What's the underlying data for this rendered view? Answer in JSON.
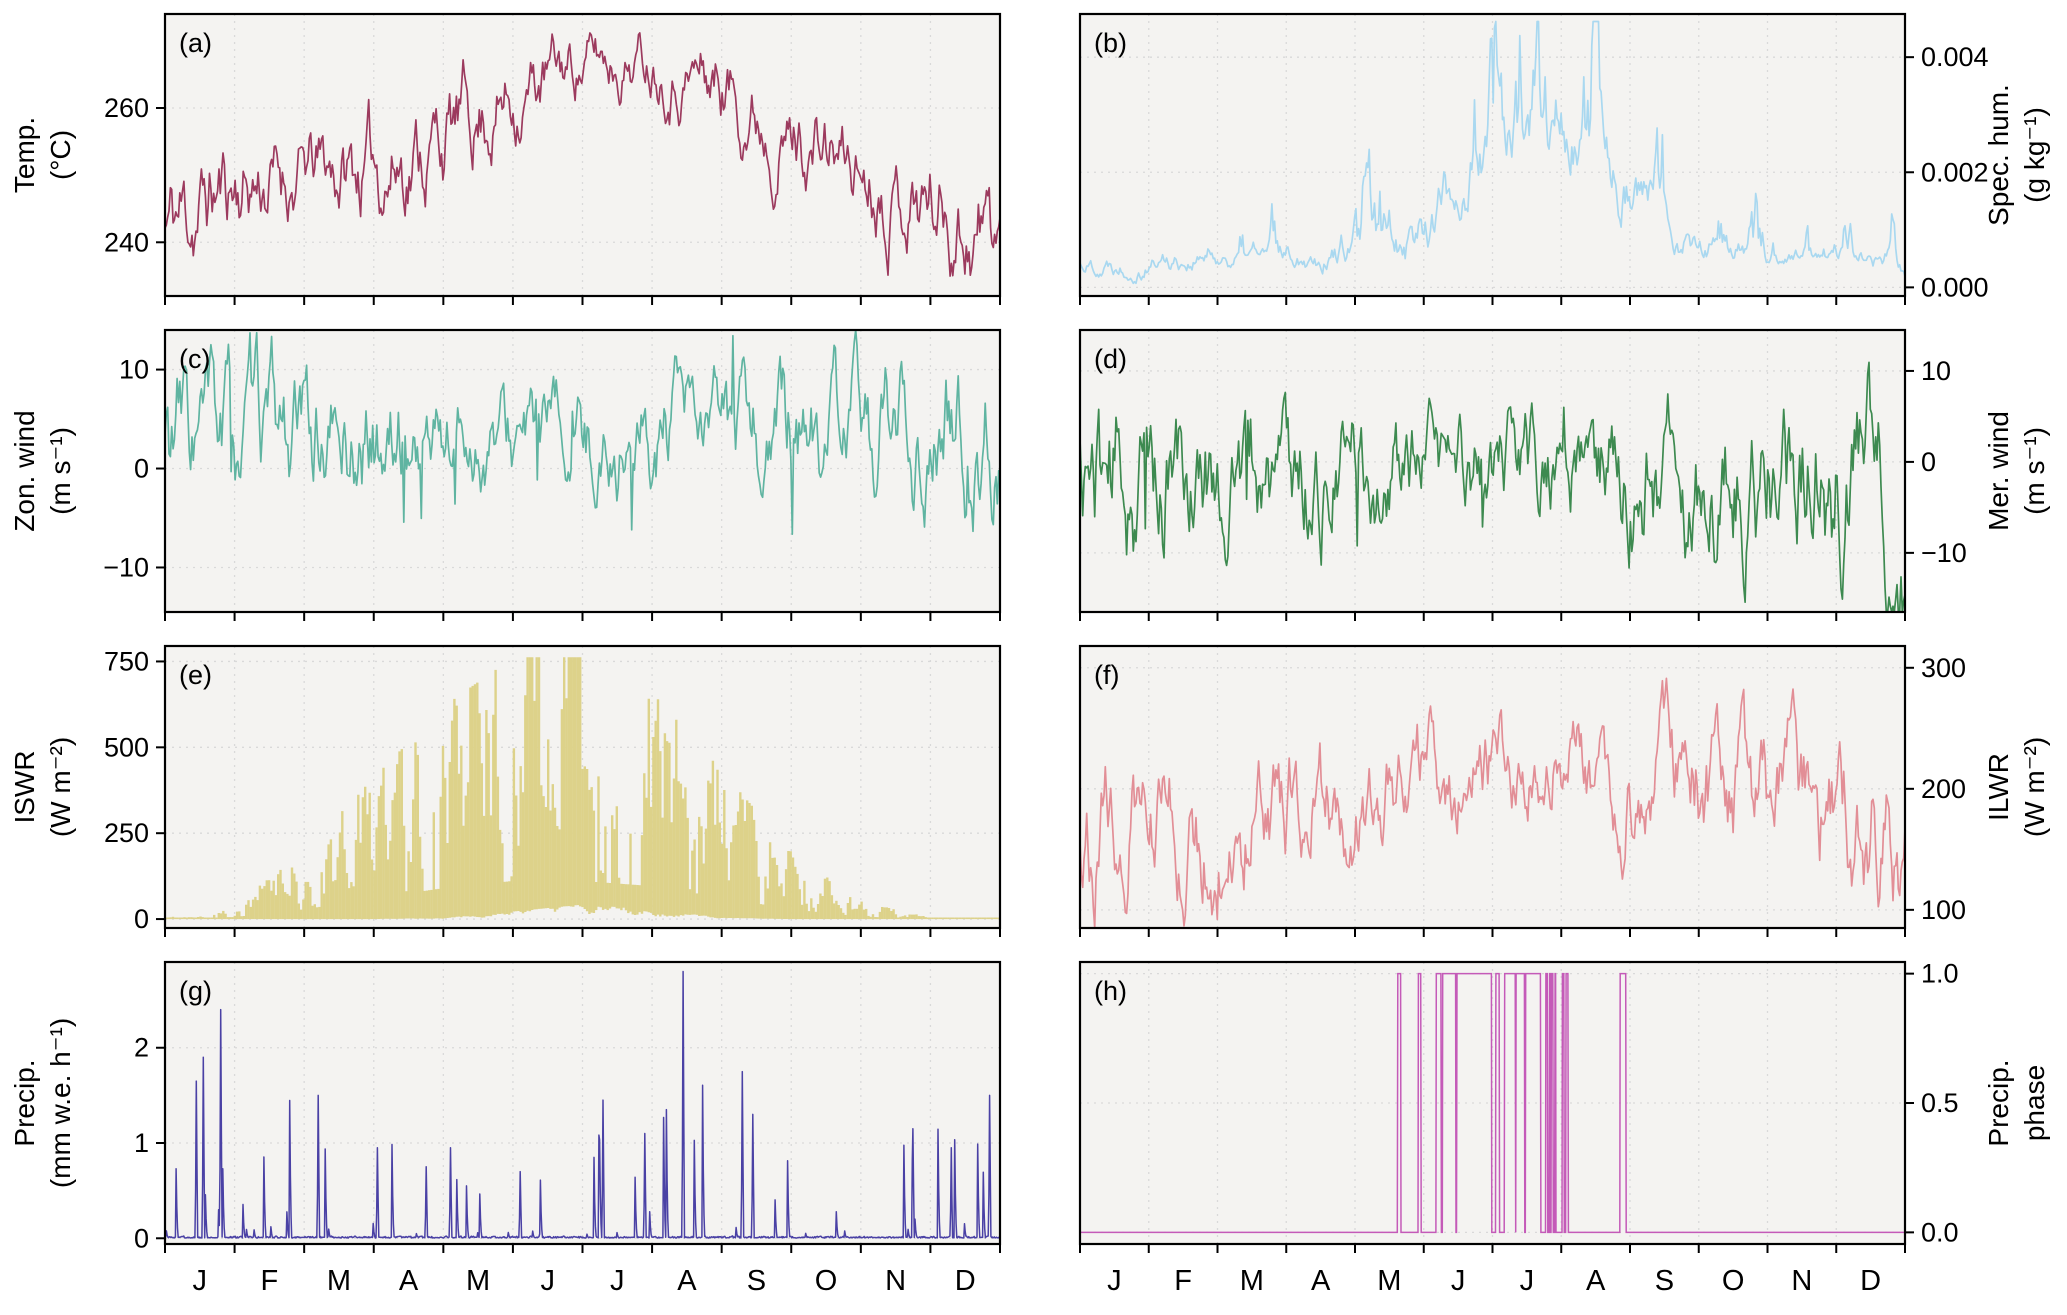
{
  "figure": {
    "background": "#ffffff",
    "panel_background": "#f4f3f1",
    "grid_color": "#d9d9d9",
    "frame_color": "#000000",
    "month_labels": [
      "J",
      "F",
      "M",
      "A",
      "M",
      "J",
      "J",
      "A",
      "S",
      "O",
      "N",
      "D"
    ]
  },
  "chart_data": [
    {
      "id": "a",
      "panel_label": "(a)",
      "name": "air-temperature",
      "type": "line",
      "axis_side": "left",
      "color": "#9c3a5e",
      "ylabel_lines": [
        "Temp.",
        "(°C)"
      ],
      "ylim": [
        232,
        274
      ],
      "yticks": [
        {
          "v": 240,
          "label": "240"
        },
        {
          "v": 260,
          "label": "260"
        }
      ],
      "monthly_mean": [
        242,
        249,
        250,
        251,
        256,
        262,
        267,
        268,
        264,
        256,
        251,
        247,
        241
      ],
      "monthly_amp": [
        6,
        5,
        4,
        5,
        5,
        4,
        3,
        3,
        4,
        4,
        4,
        5,
        6
      ],
      "seed": 11
    },
    {
      "id": "b",
      "panel_label": "(b)",
      "name": "specific-humidity",
      "type": "humidity",
      "axis_side": "right",
      "color": "#a9d8f0",
      "ylabel_lines": [
        "Spec. hum.",
        "(g kg⁻¹)"
      ],
      "ylim": [
        -0.00015,
        0.00475
      ],
      "yticks": [
        {
          "v": 0,
          "label": "0.000"
        },
        {
          "v": 0.002,
          "label": "0.002"
        },
        {
          "v": 0.004,
          "label": "0.004"
        }
      ],
      "monthly_mean": [
        0.0004,
        0.0005,
        0.0005,
        0.0006,
        0.0007,
        0.0011,
        0.0025,
        0.0029,
        0.0019,
        0.0008,
        0.0005,
        0.0006,
        0.0004
      ],
      "monthly_amp": [
        0.00025,
        0.0003,
        0.00025,
        0.0003,
        0.0004,
        0.0007,
        0.0011,
        0.0011,
        0.0008,
        0.0004,
        0.00025,
        0.0003,
        0.0003
      ],
      "seed": 22
    },
    {
      "id": "c",
      "panel_label": "(c)",
      "name": "zonal-wind",
      "type": "line",
      "gusty": true,
      "axis_side": "left",
      "color": "#5fb4a1",
      "ylabel_lines": [
        "Zon. wind",
        "(m s⁻¹)"
      ],
      "ylim": [
        -14.5,
        14
      ],
      "yticks": [
        {
          "v": -10,
          "label": "−10"
        },
        {
          "v": 0,
          "label": "0"
        },
        {
          "v": 10,
          "label": "10"
        }
      ],
      "monthly_mean": [
        3,
        2.5,
        3,
        2.5,
        3,
        2.5,
        2,
        2.5,
        2.5,
        3,
        3,
        3.5,
        4
      ],
      "monthly_amp": [
        5,
        4.5,
        4,
        4,
        3.5,
        3,
        3,
        3.5,
        3.5,
        4,
        4,
        4.5,
        5
      ],
      "seed": 33
    },
    {
      "id": "d",
      "panel_label": "(d)",
      "name": "meridional-wind",
      "type": "line",
      "gusty": true,
      "axis_side": "right",
      "color": "#3d8a50",
      "ylabel_lines": [
        "Mer. wind",
        "(m s⁻¹)"
      ],
      "ylim": [
        -16.5,
        14.5
      ],
      "yticks": [
        {
          "v": -10,
          "label": "−10"
        },
        {
          "v": 0,
          "label": "0"
        },
        {
          "v": 10,
          "label": "10"
        }
      ],
      "monthly_mean": [
        -1,
        -2,
        -1.5,
        -2,
        -1.5,
        -1,
        -0.5,
        -1,
        -1.5,
        -2,
        -2,
        -1.5,
        -1
      ],
      "monthly_amp": [
        6,
        5.5,
        5,
        5,
        4.5,
        3.5,
        3.5,
        4,
        4.5,
        5,
        5.5,
        6,
        6.5
      ],
      "seed": 44
    },
    {
      "id": "e",
      "panel_label": "(e)",
      "name": "incoming-shortwave-radiation",
      "type": "solar",
      "axis_side": "left",
      "color": "#ddd28a",
      "ylabel_lines": [
        "ISWR",
        "(W m⁻²)"
      ],
      "ylim": [
        -26,
        795
      ],
      "yticks": [
        {
          "v": 0,
          "label": "0"
        },
        {
          "v": 250,
          "label": "250"
        },
        {
          "v": 500,
          "label": "500"
        },
        {
          "v": 750,
          "label": "750"
        }
      ],
      "monthly_max": [
        2,
        40,
        190,
        400,
        600,
        740,
        740,
        640,
        420,
        190,
        50,
        4,
        2
      ],
      "monthly_min": [
        0,
        0,
        0,
        0,
        4,
        22,
        42,
        28,
        4,
        0,
        0,
        0,
        0
      ],
      "seed": 55
    },
    {
      "id": "f",
      "panel_label": "(f)",
      "name": "incoming-longwave-radiation",
      "type": "line",
      "axis_side": "right",
      "color": "#e28e96",
      "ylabel_lines": [
        "ILWR",
        "(W m⁻²)"
      ],
      "ylim": [
        85,
        318
      ],
      "yticks": [
        {
          "v": 100,
          "label": "100"
        },
        {
          "v": 200,
          "label": "200"
        },
        {
          "v": 300,
          "label": "300"
        }
      ],
      "monthly_mean": [
        180,
        178,
        172,
        185,
        198,
        212,
        222,
        228,
        215,
        198,
        188,
        182,
        160
      ],
      "monthly_amp": [
        36,
        34,
        32,
        32,
        30,
        26,
        25,
        25,
        28,
        32,
        34,
        36,
        40
      ],
      "seed": 66
    },
    {
      "id": "g",
      "panel_label": "(g)",
      "name": "precipitation-rate",
      "type": "precip",
      "axis_side": "left",
      "color": "#4a41a5",
      "ylabel_lines": [
        "Precip.",
        "(mm w.e. h⁻¹)"
      ],
      "ylim": [
        -0.06,
        2.9
      ],
      "yticks": [
        {
          "v": 0,
          "label": "0"
        },
        {
          "v": 1,
          "label": "1"
        },
        {
          "v": 2,
          "label": "2"
        }
      ],
      "monthly_intensity": [
        1.4,
        2.0,
        1.0,
        1.2,
        0.8,
        0.7,
        0.8,
        1.6,
        1.9,
        0.9,
        1.0,
        1.2,
        1.1
      ],
      "event_probability": 0.05,
      "big_events": [
        {
          "t": 0.45,
          "v": 1.65
        },
        {
          "t": 0.55,
          "v": 1.9
        },
        {
          "t": 0.8,
          "v": 2.4
        },
        {
          "t": 2.2,
          "v": 1.5
        },
        {
          "t": 3.05,
          "v": 0.95
        },
        {
          "t": 3.75,
          "v": 0.75
        },
        {
          "t": 4.1,
          "v": 0.95
        },
        {
          "t": 5.1,
          "v": 0.7
        },
        {
          "t": 6.3,
          "v": 1.45
        },
        {
          "t": 6.9,
          "v": 1.1
        },
        {
          "t": 7.45,
          "v": 2.8
        },
        {
          "t": 8.3,
          "v": 1.75
        },
        {
          "t": 8.45,
          "v": 1.3
        },
        {
          "t": 10.75,
          "v": 1.15
        },
        {
          "t": 11.3,
          "v": 0.95
        },
        {
          "t": 11.85,
          "v": 1.5
        }
      ],
      "seed": 77
    },
    {
      "id": "h",
      "panel_label": "(h)",
      "name": "precipitation-phase",
      "type": "binary",
      "axis_side": "right",
      "color": "#c45ab8",
      "ylabel_lines": [
        "Precip.",
        "phase"
      ],
      "ylim": [
        -0.045,
        1.045
      ],
      "yticks": [
        {
          "v": 0,
          "label": "0.0"
        },
        {
          "v": 0.5,
          "label": "0.5"
        },
        {
          "v": 1,
          "label": "1.0"
        }
      ],
      "events": [
        [
          4.6,
          4.66,
          0.7
        ],
        [
          4.92,
          4.97,
          0.6
        ],
        [
          5.18,
          5.98,
          0.96
        ],
        [
          6.02,
          6.1,
          0.7
        ],
        [
          6.18,
          6.7,
          0.88
        ],
        [
          6.78,
          6.92,
          0.6
        ],
        [
          7.02,
          7.1,
          0.85
        ],
        [
          7.86,
          7.94,
          1.0
        ]
      ],
      "seed": 88
    }
  ]
}
